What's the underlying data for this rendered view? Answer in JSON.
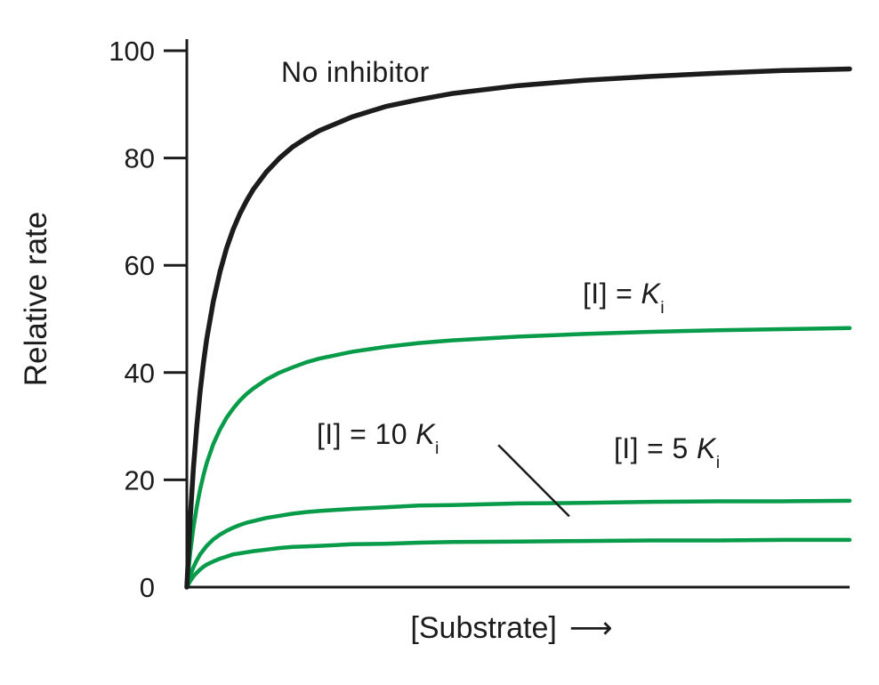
{
  "chart_data": {
    "type": "line",
    "title": "",
    "xlabel": "[Substrate]",
    "x_arrow": "⟶",
    "ylabel": "Relative rate",
    "xlim": [
      0,
      10
    ],
    "ylim": [
      0,
      100
    ],
    "yticks": [
      0,
      20,
      40,
      60,
      80,
      100
    ],
    "grid": false,
    "legend_position": "inline-labels",
    "axis_color": "#1c1c1c",
    "green_color": "#089c4a",
    "x": [
      0,
      0.05,
      0.1,
      0.15,
      0.2,
      0.25,
      0.3,
      0.4,
      0.5,
      0.6,
      0.7,
      0.8,
      0.9,
      1.0,
      1.2,
      1.4,
      1.6,
      1.8,
      2.0,
      2.5,
      3.0,
      3.5,
      4.0,
      5.0,
      6.0,
      7.0,
      8.0,
      9.0,
      10.0
    ],
    "series": [
      {
        "id": "no-inhibitor",
        "label": "No inhibitor",
        "color": "#1c1c1c",
        "width": 5.5,
        "vmax": 100,
        "values": [
          0,
          12.5,
          22.2,
          30.0,
          36.4,
          41.7,
          46.2,
          53.3,
          58.8,
          63.2,
          66.7,
          69.6,
          72.0,
          74.1,
          77.4,
          80.0,
          82.1,
          83.7,
          85.1,
          87.7,
          89.6,
          90.9,
          92.0,
          93.5,
          94.5,
          95.2,
          95.8,
          96.3,
          96.6
        ]
      },
      {
        "id": "i-eq-ki",
        "label": "[I] = Ki",
        "color": "#089c4a",
        "width": 4.5,
        "vmax": 50,
        "values": [
          0,
          6.3,
          11.1,
          15.0,
          18.2,
          20.8,
          23.1,
          26.7,
          29.4,
          31.6,
          33.3,
          34.8,
          36.0,
          37.0,
          38.7,
          40.0,
          41.0,
          41.9,
          42.6,
          43.9,
          44.8,
          45.5,
          46.0,
          46.7,
          47.2,
          47.6,
          47.9,
          48.1,
          48.3
        ]
      },
      {
        "id": "i-eq-5ki",
        "label": "[I] = 5 Ki",
        "color": "#089c4a",
        "width": 4.5,
        "vmax": 16.7,
        "values": [
          0,
          2.1,
          3.7,
          5.0,
          6.1,
          6.9,
          7.7,
          8.9,
          9.8,
          10.5,
          11.1,
          11.6,
          12.0,
          12.3,
          12.9,
          13.3,
          13.7,
          14.0,
          14.2,
          14.6,
          14.9,
          15.2,
          15.3,
          15.6,
          15.7,
          15.9,
          16.0,
          16.0,
          16.1
        ]
      },
      {
        "id": "i-eq-10ki",
        "label": "[I] = 10 Ki",
        "color": "#089c4a",
        "width": 4.5,
        "vmax": 9.1,
        "values": [
          0,
          1.1,
          2.0,
          2.7,
          3.3,
          3.8,
          4.2,
          4.8,
          5.3,
          5.7,
          6.1,
          6.3,
          6.5,
          6.7,
          7.0,
          7.3,
          7.5,
          7.6,
          7.7,
          8.0,
          8.1,
          8.3,
          8.4,
          8.5,
          8.6,
          8.7,
          8.7,
          8.8,
          8.8
        ]
      }
    ],
    "labels": {
      "no_inhibitor": {
        "text": "No inhibitor"
      },
      "ki": {
        "prefix": "[I] = ",
        "k": "K",
        "sub": "i"
      },
      "ki10": {
        "prefix": "[I] = 10 ",
        "k": "K",
        "sub": "i"
      },
      "ki5": {
        "prefix": "[I] = 5 ",
        "k": "K",
        "sub": "i"
      }
    },
    "annotation_line": {
      "x1": 4.7,
      "y1": 26.5,
      "x2": 5.77,
      "y2": 13.2
    }
  }
}
